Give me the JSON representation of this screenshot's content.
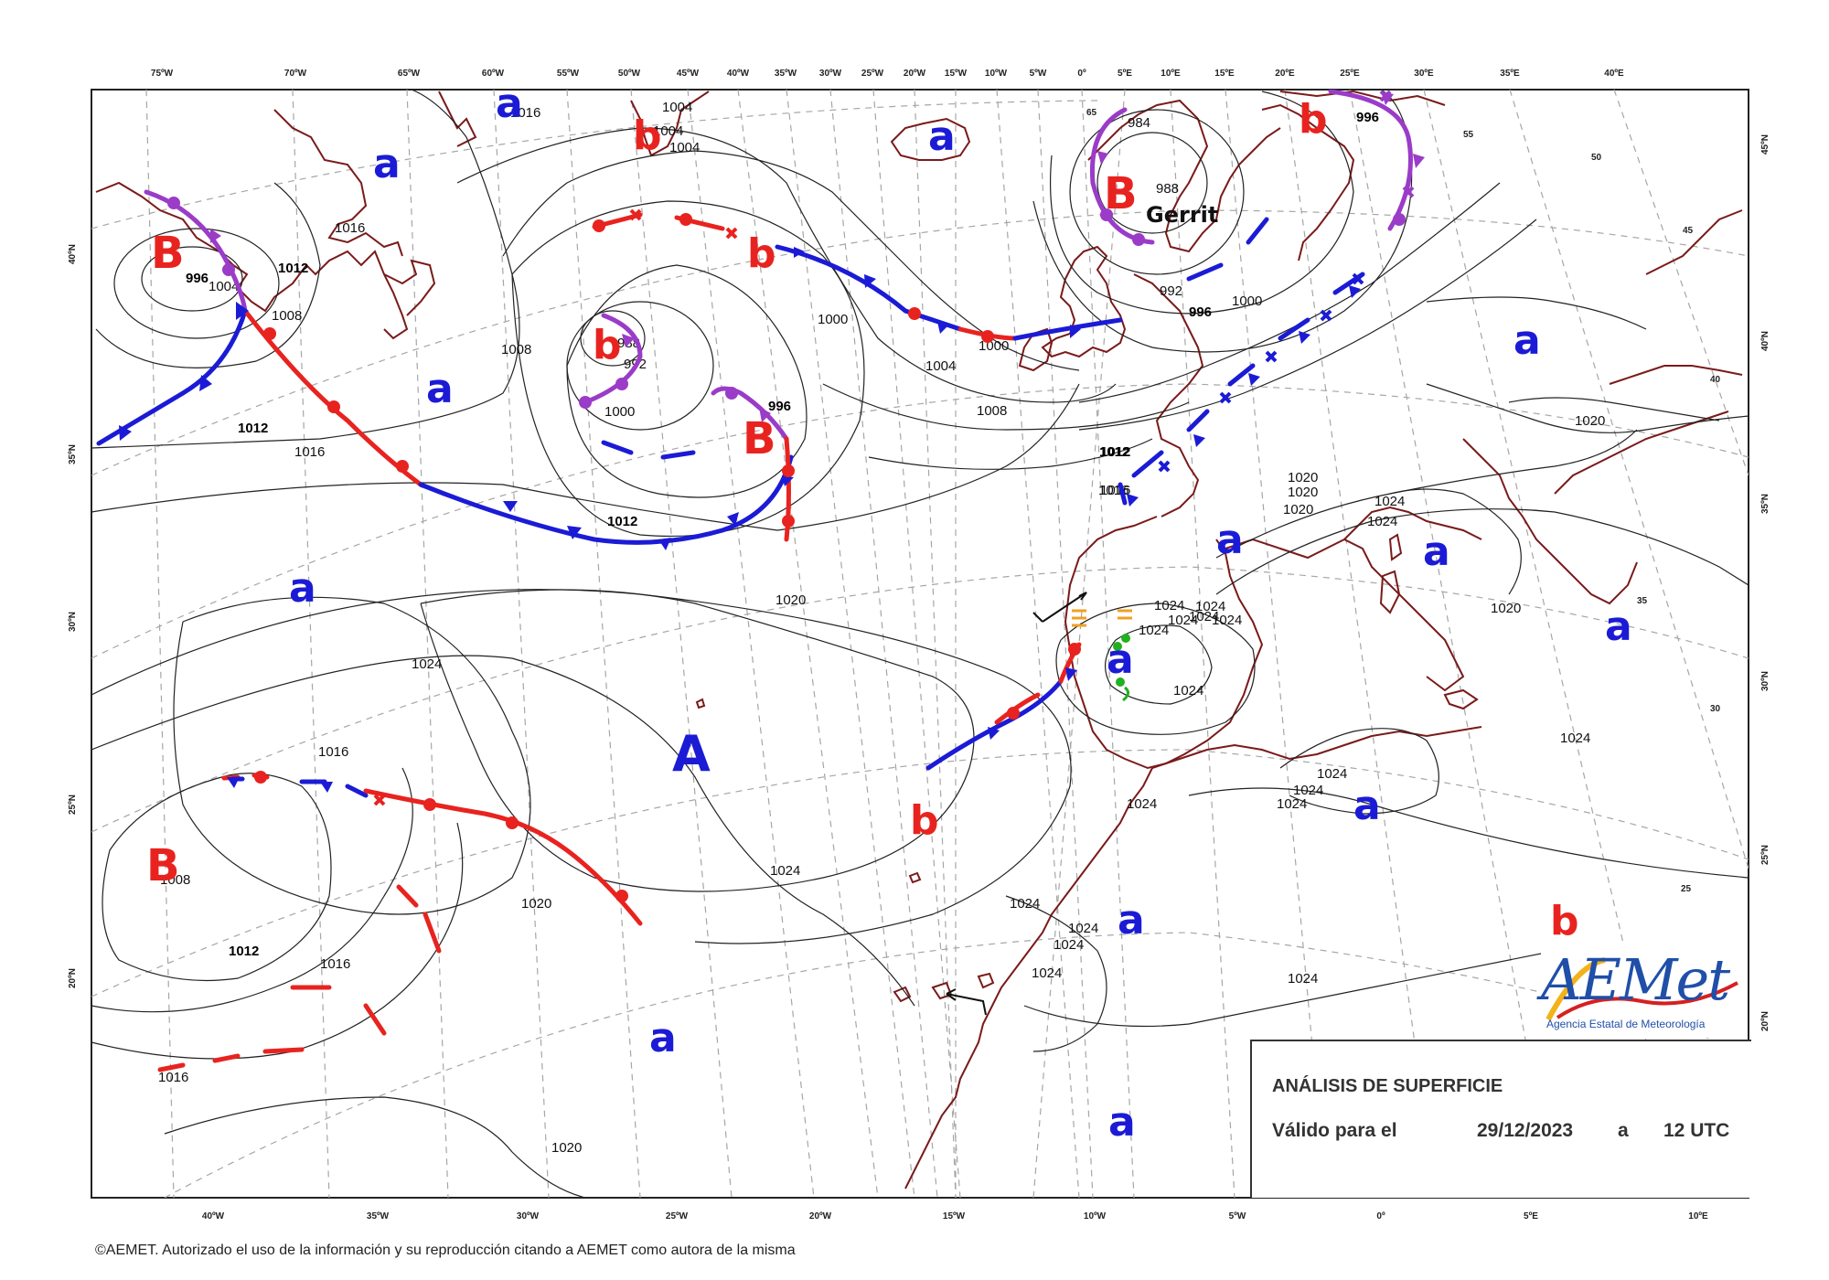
{
  "top_lon_ticks": [
    "75ºW",
    "70ºW",
    "65ºW",
    "60ºW",
    "55ºW",
    "50ºW",
    "45ºW",
    "40ºW",
    "35ºW",
    "30ºW",
    "25ºW",
    "20ºW",
    "15ºW",
    "10ºW",
    "5ºW",
    "0º",
    "5ºE",
    "10ºE",
    "15ºE",
    "20ºE",
    "25ºE",
    "30ºE",
    "35ºE",
    "40ºE"
  ],
  "bottom_lon_ticks": [
    "40ºW",
    "35ºW",
    "30ºW",
    "25ºW",
    "20ºW",
    "15ºW",
    "10ºW",
    "5ºW",
    "0º",
    "5ºE",
    "10ºE"
  ],
  "left_lat_ticks": [
    "40ºN",
    "35ºN",
    "30ºN",
    "25ºN",
    "20ºN"
  ],
  "right_lat_ticks": [
    "45ºN",
    "40ºN",
    "35ºN",
    "30ºN",
    "25ºN",
    "20ºN"
  ],
  "inner_lat_labels": [
    "65",
    "55",
    "50",
    "45",
    "40",
    "35",
    "30",
    "25"
  ],
  "isobar_labels": [
    "1016",
    "1004",
    "1004",
    "1004",
    "1016",
    "1012",
    "1008",
    "996",
    "1004",
    "1012",
    "1016",
    "1008",
    "988",
    "992",
    "1000",
    "996",
    "1012",
    "1000",
    "1004",
    "1008",
    "1000",
    "1016",
    "1012",
    "1020",
    "1024",
    "1016",
    "1020",
    "1024",
    "1008",
    "1012",
    "1016",
    "1016",
    "1020",
    "984",
    "988",
    "996",
    "992",
    "996",
    "1000",
    "1012",
    "1016",
    "1020",
    "1020",
    "1020",
    "1024",
    "1024",
    "1024",
    "1024",
    "1024",
    "1024",
    "1024",
    "1024",
    "1024",
    "1024",
    "1024",
    "1024",
    "1024",
    "1024",
    "1024",
    "1024",
    "1024",
    "1024",
    "1024",
    "1020",
    "1020"
  ],
  "pressure_centers": {
    "low_B": [
      "B",
      "B",
      "B",
      "B"
    ],
    "low_b": [
      "b",
      "b",
      "b",
      "b",
      "b",
      "b"
    ],
    "high_A": [
      "A"
    ],
    "high_a": [
      "a",
      "a",
      "a",
      "a",
      "a",
      "a",
      "a",
      "a",
      "a",
      "a",
      "a",
      "a",
      "a",
      "a",
      "a"
    ]
  },
  "storm_name": "Gerrit",
  "info": {
    "title": "ANÁLISIS DE SUPERFICIE",
    "valid_label": "Válido para el",
    "date": "29/12/2023",
    "separator": "a",
    "time": "12 UTC"
  },
  "logo": {
    "name": "AEMet",
    "subtitle": "Agencia Estatal de Meteorología"
  },
  "copyright": "©AEMET. Autorizado el uso de la información y su reproducción citando a AEMET como autora de la misma",
  "colors": {
    "warm_front": "#e8231f",
    "cold_front": "#1b1bd6",
    "occluded_front": "#9a3cc8",
    "coastline": "#7a1a1a",
    "isobar": "#222222",
    "graticule": "#999999"
  }
}
